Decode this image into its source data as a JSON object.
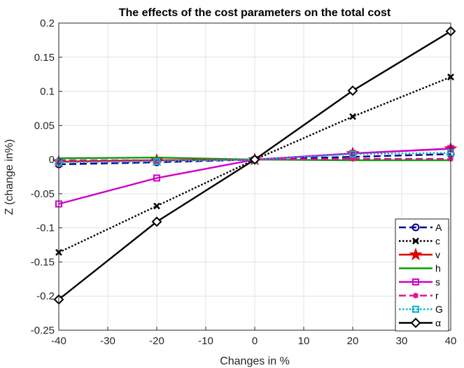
{
  "chart_data": {
    "type": "line",
    "title": "The effects of the cost parameters on the total cost",
    "xlabel": "Changes in %",
    "ylabel": "Z (change in%)",
    "x": [
      -40,
      -20,
      0,
      20,
      40
    ],
    "xlim": [
      -40,
      40
    ],
    "ylim": [
      -0.25,
      0.2
    ],
    "xticks": [
      -40,
      -30,
      -20,
      -10,
      0,
      10,
      20,
      30,
      40
    ],
    "yticks": [
      -0.25,
      -0.2,
      -0.15,
      -0.1,
      -0.05,
      0,
      0.05,
      0.1,
      0.15,
      0.2
    ],
    "xtick_labels": [
      "-40",
      "-30",
      "-20",
      "-10",
      "0",
      "10",
      "20",
      "30",
      "40"
    ],
    "ytick_labels": [
      "-0.25",
      "-0.2",
      "-0.15",
      "-0.1",
      "-0.05",
      "0",
      "0.05",
      "0.1",
      "0.15",
      "0.2"
    ],
    "grid": true,
    "legend_position": "bottom-right",
    "series": [
      {
        "name": "A",
        "values": [
          -0.007,
          -0.004,
          0,
          0.004,
          0.008
        ],
        "color": "#00008b",
        "dash": "dashed",
        "marker": "circle-bar"
      },
      {
        "name": "c",
        "values": [
          -0.136,
          -0.068,
          0,
          0.063,
          0.121
        ],
        "color": "#000000",
        "dash": "dotted",
        "marker": "x"
      },
      {
        "name": "v",
        "values": [
          -0.003,
          -0.001,
          0,
          0.009,
          0.016
        ],
        "color": "#e00000",
        "dash": "solid",
        "marker": "star"
      },
      {
        "name": "h",
        "values": [
          0.002,
          0.003,
          0,
          -0.001,
          -0.001
        ],
        "color": "#00a000",
        "dash": "solid",
        "marker": "none"
      },
      {
        "name": "s",
        "values": [
          -0.065,
          -0.027,
          0,
          0.009,
          0.016
        ],
        "color": "#d000c8",
        "dash": "solid",
        "marker": "square"
      },
      {
        "name": "r",
        "values": [
          -0.001,
          -0.001,
          0,
          0.001,
          0.001
        ],
        "color": "#e0148c",
        "dash": "dashed",
        "marker": "asterisk"
      },
      {
        "name": "G",
        "values": [
          -0.004,
          -0.003,
          0,
          0.008,
          0.01
        ],
        "color": "#00b4d2",
        "dash": "dotted",
        "marker": "square"
      },
      {
        "name": "α",
        "values": [
          -0.205,
          -0.091,
          0,
          0.101,
          0.188
        ],
        "color": "#000000",
        "dash": "solid",
        "marker": "diamond"
      }
    ]
  }
}
